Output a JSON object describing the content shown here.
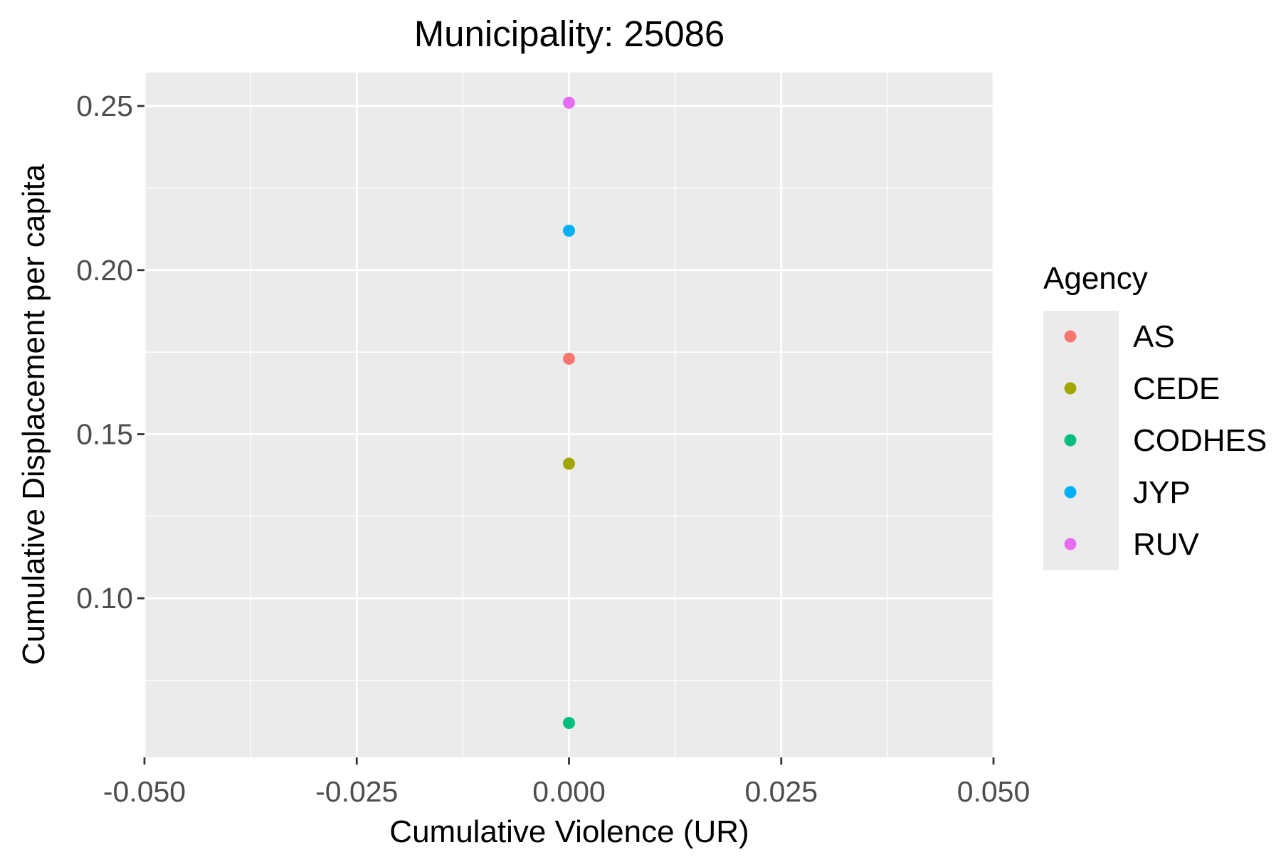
{
  "chart_data": {
    "type": "scatter",
    "title": "Municipality: 25086",
    "xlabel": "Cumulative Violence (UR)",
    "ylabel": "Cumulative Displacement per capita",
    "xlim": [
      -0.05,
      0.05
    ],
    "ylim": [
      0.0515,
      0.2602
    ],
    "x_ticks": [
      -0.05,
      -0.025,
      0.0,
      0.025,
      0.05
    ],
    "x_tick_labels": [
      "-0.050",
      "-0.025",
      "0.000",
      "0.025",
      "0.050"
    ],
    "y_ticks": [
      0.1,
      0.15,
      0.2,
      0.25
    ],
    "y_tick_labels": [
      "0.10",
      "0.15",
      "0.20",
      "0.25"
    ],
    "grid": true,
    "legend": {
      "title": "Agency",
      "position": "right"
    },
    "series": [
      {
        "name": "AS",
        "color": "#F8766D",
        "points": [
          {
            "x": 0.0,
            "y": 0.173
          }
        ]
      },
      {
        "name": "CEDE",
        "color": "#A3A500",
        "points": [
          {
            "x": 0.0,
            "y": 0.141
          }
        ]
      },
      {
        "name": "CODHES",
        "color": "#00BF7D",
        "points": [
          {
            "x": 0.0,
            "y": 0.062
          }
        ]
      },
      {
        "name": "JYP",
        "color": "#00B0F6",
        "points": [
          {
            "x": 0.0,
            "y": 0.212
          }
        ]
      },
      {
        "name": "RUV",
        "color": "#E76BF3",
        "points": [
          {
            "x": 0.0,
            "y": 0.251
          }
        ]
      }
    ]
  }
}
